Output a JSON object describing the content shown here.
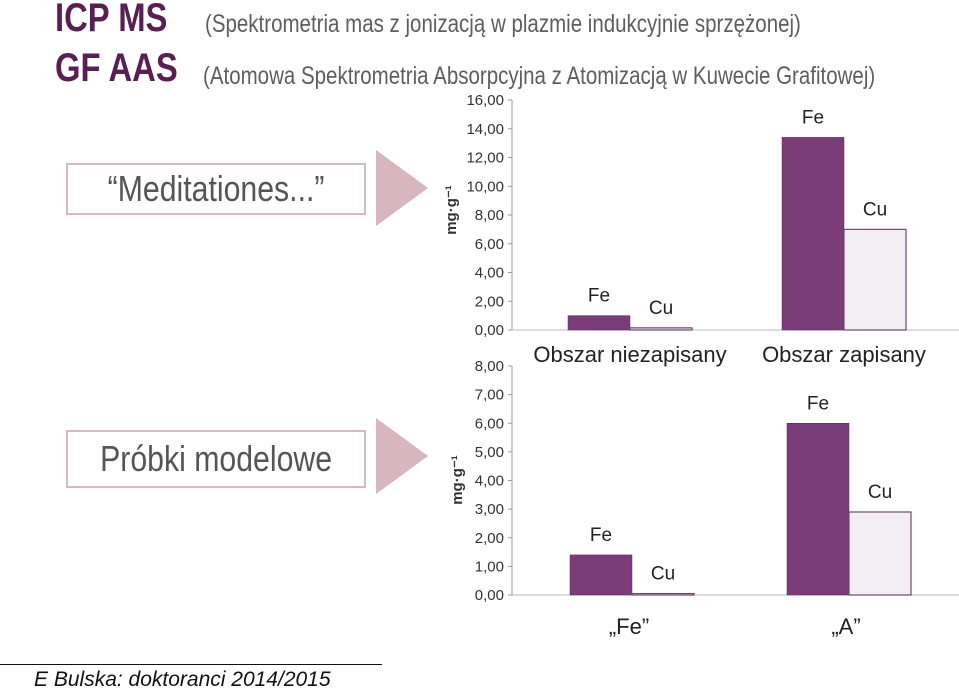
{
  "header": {
    "line1_main": "ICP MS",
    "line1_sub": "(Spektrometria mas z jonizacją w plazmie indukcyjnie sprzężonej)",
    "line2_main": "GF AAS",
    "line2_sub": "(Atomowa Spektrometria Absorpcyjna z Atomizacją w Kuwecie Grafitowej)"
  },
  "labels": {
    "meditationes": "“Meditationes...”",
    "probki": "Próbki modelowe"
  },
  "footer": {
    "text": "E Bulska: doktoranci 2014/2015"
  },
  "colors": {
    "fe": "#7a3d7a",
    "cu": "#f2eef4",
    "arrow": "#d7b6c0",
    "title": "#5a1f52"
  },
  "chart_data": [
    {
      "type": "bar",
      "ylabel": "mg·g⁻¹",
      "ylim": [
        0,
        16
      ],
      "yticks": [
        "0,00",
        "2,00",
        "4,00",
        "6,00",
        "8,00",
        "10,00",
        "12,00",
        "14,00",
        "16,00"
      ],
      "categories": [
        "Obszar niezapisany",
        "Obszar zapisany"
      ],
      "series": [
        {
          "name": "Fe",
          "values": [
            1.0,
            13.4
          ]
        },
        {
          "name": "Cu",
          "values": [
            0.15,
            7.0
          ]
        }
      ]
    },
    {
      "type": "bar",
      "ylabel": "mg·g⁻¹",
      "ylim": [
        0,
        8
      ],
      "yticks": [
        "0,00",
        "1,00",
        "2,00",
        "3,00",
        "4,00",
        "5,00",
        "6,00",
        "7,00",
        "8,00"
      ],
      "categories": [
        "„Fe”",
        "„A”"
      ],
      "series": [
        {
          "name": "Fe",
          "values": [
            1.4,
            6.0
          ]
        },
        {
          "name": "Cu",
          "values": [
            0.05,
            2.9
          ]
        }
      ]
    }
  ]
}
